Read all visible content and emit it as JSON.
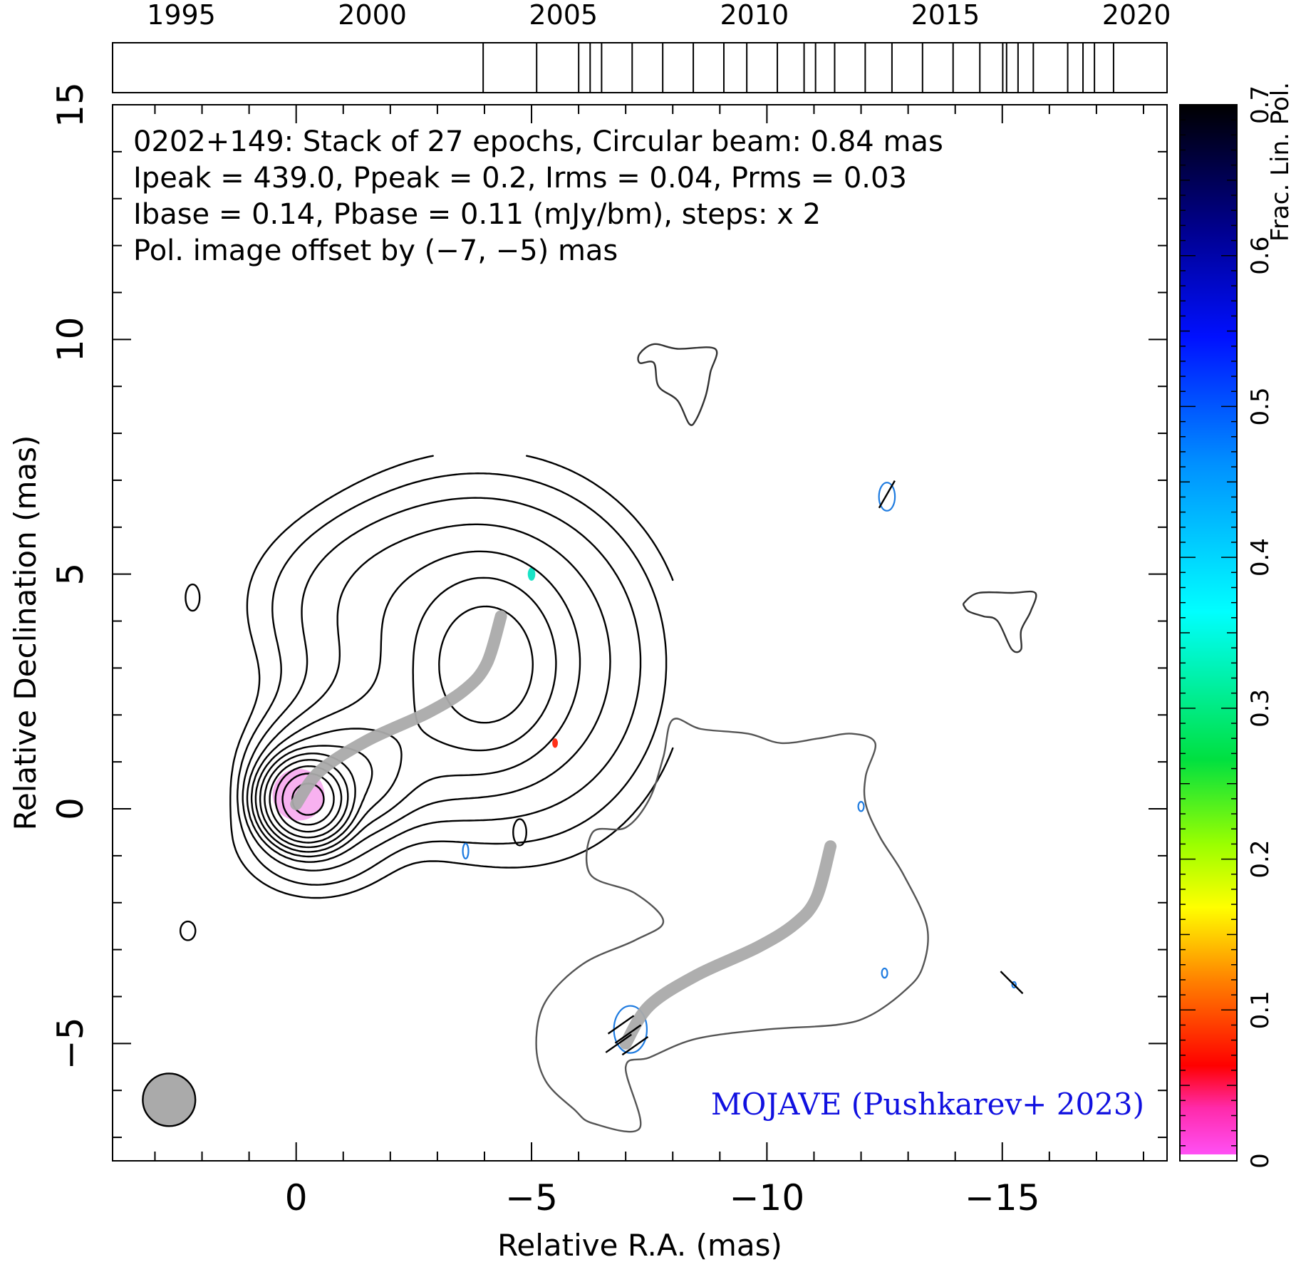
{
  "chart_data": {
    "type": "contour",
    "source": "0202+149",
    "header_lines": [
      "0202+149: Stack of 27 epochs, Circular beam: 0.84 mas",
      "Ipeak = 439.0, Ppeak = 0.2, Irms = 0.04, Prms = 0.03",
      "Ibase = 0.14, Pbase = 0.11 (mJy/bm), steps: x 2"
    ],
    "offset_note": "Pol. image offset by (−7, −5) mas",
    "credit": "MOJAVE (Pushkarev+ 2023)",
    "xlabel": "Relative R.A. (mas)",
    "ylabel": "Relative Declination (mas)",
    "xlim": [
      3.9,
      -18.5
    ],
    "ylim": [
      -7.5,
      15.0
    ],
    "x_ticks": [
      0,
      -5,
      -10,
      -15
    ],
    "x_tick_labels": [
      "0",
      "−5",
      "−10",
      "−15"
    ],
    "y_ticks": [
      -5,
      0,
      5,
      10,
      15
    ],
    "y_tick_labels": [
      "−5",
      "0",
      "5",
      "10",
      "15"
    ],
    "timeline": {
      "range": [
        1993.2,
        2020.8
      ],
      "tick_labels": [
        "1995",
        "2000",
        "2005",
        "2010",
        "2015",
        "2020"
      ],
      "tick_years": [
        1995,
        2000,
        2005,
        2010,
        2015,
        2020
      ],
      "epochs": [
        2002.9,
        2004.3,
        2005.4,
        2005.7,
        2006.0,
        2006.8,
        2007.6,
        2008.4,
        2009.2,
        2009.8,
        2010.6,
        2011.3,
        2011.6,
        2012.1,
        2012.9,
        2013.6,
        2014.4,
        2015.2,
        2015.9,
        2016.5,
        2016.6,
        2016.9,
        2017.3,
        2018.2,
        2018.6,
        2018.9,
        2019.4
      ]
    },
    "colorbar": {
      "label": "Frac. Lin. Pol.",
      "range": [
        0,
        0.7
      ],
      "tick_labels": [
        "0",
        "0.1",
        "0.2",
        "0.3",
        "0.4",
        "0.5",
        "0.6",
        "0.7"
      ],
      "ticks": [
        0,
        0.1,
        0.2,
        0.3,
        0.4,
        0.5,
        0.6,
        0.7
      ]
    },
    "beam_diameter_mas": 0.84,
    "beam_center": [
      2.7,
      -6.2
    ],
    "colors": {
      "stokes_i_contour": "#000000",
      "pol_contour_outer": "#555555",
      "pol_contour_blue": "#1e7be0",
      "ridge_line": "#aaaaaa",
      "beam": "#aaaaaa",
      "credit": "#1010e0",
      "offset_note": "#1e7be0"
    },
    "intensity_contours": {
      "peak": [
        -0.25,
        0.2
      ],
      "steps": 14,
      "blobs": [
        {
          "center": [
            -0.25,
            0.2
          ],
          "sigma": [
            0.36,
            0.36
          ],
          "amp": 1.0
        },
        {
          "center": [
            -0.85,
            0.7
          ],
          "sigma": [
            0.7,
            0.55
          ],
          "amp": 0.028
        },
        {
          "center": [
            -1.9,
            1.4
          ],
          "sigma": [
            1.1,
            0.8
          ],
          "amp": 0.0055
        },
        {
          "center": [
            -4.05,
            3.05
          ],
          "sigma": [
            0.75,
            0.95
          ],
          "amp": 0.032
        },
        {
          "center": [
            -3.8,
            3.3
          ],
          "sigma": [
            1.7,
            1.7
          ],
          "amp": 0.0075
        },
        {
          "center": [
            -2.1,
            4.5
          ],
          "sigma": [
            1.6,
            1.0
          ],
          "amp": 0.0015
        },
        {
          "center": [
            -5.3,
            2.6
          ],
          "sigma": [
            1.4,
            1.9
          ],
          "amp": 0.0012
        },
        {
          "center": [
            -0.4,
            -0.55
          ],
          "sigma": [
            0.9,
            0.7
          ],
          "amp": 0.002
        }
      ],
      "isolated": [
        {
          "center": [
            2.2,
            4.5
          ],
          "rx": 0.15,
          "ry": 0.28
        },
        {
          "center": [
            2.3,
            -2.6
          ],
          "rx": 0.16,
          "ry": 0.2
        },
        {
          "center": [
            -4.75,
            -0.5
          ],
          "rx": 0.14,
          "ry": 0.28
        }
      ],
      "patches": [
        {
          "outline": [
            [
              -7.3,
              9.7
            ],
            [
              -7.6,
              9.9
            ],
            [
              -8.1,
              9.8
            ],
            [
              -8.9,
              9.8
            ],
            [
              -8.8,
              9.3
            ],
            [
              -8.7,
              8.8
            ],
            [
              -8.5,
              8.3
            ],
            [
              -8.35,
              8.2
            ],
            [
              -8.1,
              8.7
            ],
            [
              -7.7,
              9.0
            ],
            [
              -7.6,
              9.5
            ],
            [
              -7.3,
              9.5
            ]
          ]
        },
        {
          "outline": [
            [
              -14.2,
              4.4
            ],
            [
              -14.5,
              4.6
            ],
            [
              -15.2,
              4.6
            ],
            [
              -15.7,
              4.6
            ],
            [
              -15.6,
              4.2
            ],
            [
              -15.4,
              3.8
            ],
            [
              -15.4,
              3.4
            ],
            [
              -15.2,
              3.4
            ],
            [
              -14.9,
              4.0
            ],
            [
              -14.6,
              4.1
            ],
            [
              -14.3,
              4.2
            ],
            [
              -14.2,
              4.3
            ]
          ]
        }
      ]
    },
    "ridge_line": [
      [
        0.0,
        0.1
      ],
      [
        -0.5,
        0.8
      ],
      [
        -1.5,
        1.45
      ],
      [
        -2.8,
        2.05
      ],
      [
        -3.6,
        2.55
      ],
      [
        -4.05,
        3.1
      ],
      [
        -4.35,
        4.1
      ]
    ],
    "pol_outer_contour": [
      [
        -7.0,
        -5.5
      ],
      [
        -7.5,
        -5.3
      ],
      [
        -8.5,
        -4.9
      ],
      [
        -10.0,
        -4.7
      ],
      [
        -11.5,
        -4.6
      ],
      [
        -12.2,
        -4.4
      ],
      [
        -12.9,
        -3.9
      ],
      [
        -13.3,
        -3.4
      ],
      [
        -13.4,
        -2.5
      ],
      [
        -12.9,
        -1.4
      ],
      [
        -12.4,
        -0.6
      ],
      [
        -12.1,
        0.1
      ],
      [
        -12.1,
        0.7
      ],
      [
        -12.3,
        1.4
      ],
      [
        -11.8,
        1.6
      ],
      [
        -11.1,
        1.5
      ],
      [
        -10.3,
        1.4
      ],
      [
        -9.6,
        1.6
      ],
      [
        -8.6,
        1.7
      ],
      [
        -8.0,
        1.9
      ],
      [
        -7.8,
        1.1
      ],
      [
        -7.5,
        0.2
      ],
      [
        -7.0,
        -0.4
      ],
      [
        -6.3,
        -0.5
      ],
      [
        -6.25,
        -1.4
      ],
      [
        -7.2,
        -1.8
      ],
      [
        -7.8,
        -2.4
      ],
      [
        -7.2,
        -2.8
      ],
      [
        -6.1,
        -3.3
      ],
      [
        -5.3,
        -4.1
      ],
      [
        -5.1,
        -5.0
      ],
      [
        -5.3,
        -5.8
      ],
      [
        -5.9,
        -6.4
      ],
      [
        -6.3,
        -6.7
      ],
      [
        -7.3,
        -6.8
      ]
    ],
    "pol_blue_contours": [
      {
        "center": [
          -7.1,
          -4.7
        ],
        "rx": 0.35,
        "ry": 0.5
      },
      {
        "center": [
          -12.55,
          6.65
        ],
        "rx": 0.17,
        "ry": 0.3
      },
      {
        "center": [
          -12.0,
          0.05
        ],
        "rx": 0.06,
        "ry": 0.1
      },
      {
        "center": [
          -12.5,
          -3.5
        ],
        "rx": 0.06,
        "ry": 0.1
      },
      {
        "center": [
          -15.25,
          -3.75
        ],
        "rx": 0.04,
        "ry": 0.06
      },
      {
        "center": [
          -3.6,
          -0.9
        ],
        "rx": 0.06,
        "ry": 0.16
      }
    ],
    "pol_ridge_line": [
      [
        -7.0,
        -5.0
      ],
      [
        -7.5,
        -4.2
      ],
      [
        -8.5,
        -3.55
      ],
      [
        -9.8,
        -2.95
      ],
      [
        -10.6,
        -2.45
      ],
      [
        -11.05,
        -1.9
      ],
      [
        -11.35,
        -0.8
      ]
    ],
    "evpa_ticks": [
      {
        "center": [
          -6.9,
          -4.6
        ],
        "angle_deg": 35
      },
      {
        "center": [
          -7.05,
          -4.8
        ],
        "angle_deg": 35
      },
      {
        "center": [
          -6.85,
          -5.0
        ],
        "angle_deg": 35
      },
      {
        "center": [
          -7.2,
          -5.05
        ],
        "angle_deg": 35
      },
      {
        "center": [
          -12.55,
          6.7
        ],
        "angle_deg": 60
      },
      {
        "center": [
          -15.2,
          -3.7
        ],
        "angle_deg": -45
      }
    ],
    "fpol_pixels": [
      {
        "center": [
          -0.05,
          0.3
        ],
        "value": 0.01,
        "rx": 0.55,
        "ry": 0.55
      },
      {
        "center": [
          -5.0,
          5.0
        ],
        "value": 0.35,
        "rx": 0.08,
        "ry": 0.14
      },
      {
        "center": [
          -5.5,
          1.4
        ],
        "value": 0.05,
        "rx": 0.06,
        "ry": 0.1
      }
    ]
  }
}
